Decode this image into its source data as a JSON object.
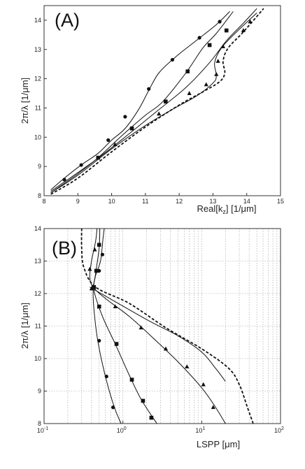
{
  "chart_data": [
    {
      "type": "line",
      "panel_label": "(A)",
      "xlabel_main": "Real[k",
      "xlabel_sub": "z",
      "xlabel_rest": "] [1/μm]",
      "ylabel": "2π/λ [1/μm]",
      "xlim": [
        8,
        15
      ],
      "ylim": [
        8,
        14.5
      ],
      "x_scale": "linear",
      "xticks": [
        8,
        9,
        10,
        11,
        12,
        13,
        14,
        15
      ],
      "yticks": [
        8,
        9,
        10,
        11,
        12,
        13,
        14
      ],
      "grid": false,
      "series": [
        {
          "marker": "circle",
          "style": "solid",
          "points": [
            [
              8.2,
              8.2
            ],
            [
              8.6,
              8.6
            ],
            [
              9.1,
              9.05
            ],
            [
              9.6,
              9.45
            ],
            [
              10.0,
              9.9
            ],
            [
              10.4,
              10.3
            ],
            [
              10.8,
              10.95
            ],
            [
              11.1,
              11.6
            ],
            [
              11.4,
              12.2
            ],
            [
              11.9,
              12.75
            ],
            [
              12.5,
              13.3
            ],
            [
              13.1,
              13.85
            ],
            [
              13.5,
              14.3
            ]
          ],
          "markers": [
            [
              8.6,
              8.55
            ],
            [
              9.1,
              9.05
            ],
            [
              9.9,
              9.9
            ],
            [
              10.4,
              10.7
            ],
            [
              11.1,
              11.65
            ],
            [
              11.8,
              12.65
            ],
            [
              12.6,
              13.4
            ],
            [
              13.2,
              13.95
            ]
          ]
        },
        {
          "marker": "square",
          "style": "solid",
          "points": [
            [
              8.2,
              8.1
            ],
            [
              9.0,
              8.75
            ],
            [
              9.6,
              9.3
            ],
            [
              10.3,
              10.05
            ],
            [
              11.0,
              10.75
            ],
            [
              11.5,
              11.2
            ],
            [
              12.2,
              12.2
            ],
            [
              12.7,
              13.05
            ],
            [
              13.1,
              13.55
            ],
            [
              13.6,
              14.3
            ]
          ],
          "markers": [
            [
              9.6,
              9.3
            ],
            [
              10.6,
              10.3
            ],
            [
              11.6,
              11.22
            ],
            [
              12.25,
              12.25
            ],
            [
              12.9,
              13.15
            ],
            [
              13.4,
              13.65
            ]
          ]
        },
        {
          "marker": "none",
          "style": "solid",
          "points": [
            [
              8.2,
              8.15
            ],
            [
              9.5,
              9.2
            ],
            [
              10.5,
              10.1
            ],
            [
              11.3,
              10.85
            ],
            [
              12.2,
              11.7
            ],
            [
              12.9,
              12.55
            ],
            [
              13.4,
              13.3
            ],
            [
              13.9,
              13.9
            ],
            [
              14.3,
              14.4
            ]
          ],
          "markers": []
        },
        {
          "marker": "triangle",
          "style": "solid",
          "points": [
            [
              8.2,
              8.1
            ],
            [
              9.0,
              8.7
            ],
            [
              10.0,
              9.6
            ],
            [
              11.0,
              10.4
            ],
            [
              11.8,
              10.95
            ],
            [
              12.5,
              11.4
            ],
            [
              13.0,
              11.85
            ],
            [
              13.1,
              12.1
            ],
            [
              13.05,
              12.55
            ],
            [
              13.25,
              13.05
            ],
            [
              13.7,
              13.6
            ],
            [
              14.3,
              14.25
            ]
          ],
          "markers": [
            [
              10.1,
              9.75
            ],
            [
              11.4,
              10.8
            ],
            [
              12.3,
              11.5
            ],
            [
              12.8,
              11.8
            ],
            [
              13.1,
              12.15
            ],
            [
              13.15,
              12.6
            ],
            [
              13.3,
              13.1
            ],
            [
              13.9,
              13.65
            ],
            [
              14.1,
              13.95
            ]
          ]
        },
        {
          "marker": "none",
          "style": "dashed",
          "points": [
            [
              8.2,
              8.05
            ],
            [
              9.0,
              8.6
            ],
            [
              10.0,
              9.5
            ],
            [
              11.0,
              10.35
            ],
            [
              12.0,
              11.1
            ],
            [
              12.7,
              11.55
            ],
            [
              13.2,
              11.9
            ],
            [
              13.35,
              12.2
            ],
            [
              13.3,
              12.6
            ],
            [
              13.45,
              13.05
            ],
            [
              13.9,
              13.6
            ],
            [
              14.5,
              14.4
            ]
          ],
          "markers": []
        }
      ]
    },
    {
      "type": "line",
      "panel_label": "(B)",
      "xlabel": "LSPP [μm]",
      "ylabel": "2π/λ [1/μm]",
      "xlim": [
        0.1,
        100
      ],
      "ylim": [
        8,
        14
      ],
      "x_scale": "log",
      "xtick_bases": [
        "10",
        "10",
        "10",
        "10"
      ],
      "xtick_exps": [
        "-1",
        "0",
        "1",
        "2"
      ],
      "xtick_values": [
        0.1,
        1,
        10,
        100
      ],
      "yticks": [
        8,
        9,
        10,
        11,
        12,
        13,
        14
      ],
      "grid": true,
      "series": [
        {
          "marker": "circle",
          "style": "solid",
          "points": [
            [
              0.95,
              8.0
            ],
            [
              0.78,
              8.5
            ],
            [
              0.6,
              9.45
            ],
            [
              0.48,
              10.55
            ],
            [
              0.43,
              11.5
            ],
            [
              0.42,
              12.1
            ],
            [
              0.45,
              12.55
            ],
            [
              0.52,
              13.0
            ],
            [
              0.56,
              13.7
            ],
            [
              0.58,
              14.0
            ]
          ],
          "markers": [
            [
              0.75,
              8.5
            ],
            [
              0.62,
              9.45
            ],
            [
              0.5,
              10.55
            ],
            [
              0.42,
              12.2
            ],
            [
              0.5,
              12.7
            ],
            [
              0.55,
              13.2
            ]
          ]
        },
        {
          "marker": "square",
          "style": "solid",
          "points": [
            [
              2.7,
              8.0
            ],
            [
              1.7,
              8.75
            ],
            [
              1.2,
              9.5
            ],
            [
              0.8,
              10.45
            ],
            [
              0.55,
              11.3
            ],
            [
              0.43,
              12.1
            ],
            [
              0.45,
              12.6
            ],
            [
              0.5,
              13.4
            ],
            [
              0.51,
              14.0
            ]
          ],
          "markers": [
            [
              2.3,
              8.18
            ],
            [
              1.8,
              8.7
            ],
            [
              1.3,
              9.35
            ],
            [
              0.83,
              10.45
            ],
            [
              0.5,
              11.6
            ],
            [
              0.43,
              12.2
            ],
            [
              0.46,
              12.7
            ],
            [
              0.5,
              13.5
            ]
          ]
        },
        {
          "marker": "triangle",
          "style": "solid",
          "points": [
            [
              20,
              8.0
            ],
            [
              15,
              8.5
            ],
            [
              10,
              9.1
            ],
            [
              5,
              9.9
            ],
            [
              2.5,
              10.6
            ],
            [
              1.2,
              11.3
            ],
            [
              0.6,
              11.85
            ],
            [
              0.42,
              12.2
            ],
            [
              0.38,
              12.5
            ],
            [
              0.4,
              13.0
            ],
            [
              0.45,
              13.6
            ],
            [
              0.47,
              14.0
            ]
          ],
          "markers": [
            [
              14,
              8.5
            ],
            [
              10.5,
              9.2
            ],
            [
              6.5,
              9.75
            ],
            [
              3.5,
              10.3
            ],
            [
              1.7,
              10.95
            ],
            [
              0.8,
              11.6
            ],
            [
              0.4,
              12.15
            ],
            [
              0.38,
              12.75
            ],
            [
              0.44,
              13.35
            ]
          ]
        },
        {
          "marker": "none",
          "style": "solid",
          "points": [
            [
              0.38,
              12.2
            ],
            [
              2.0,
              11.2
            ],
            [
              5.0,
              10.7
            ],
            [
              10.0,
              10.2
            ],
            [
              15.0,
              9.7
            ],
            [
              20.0,
              9.3
            ]
          ],
          "markers": []
        },
        {
          "marker": "none",
          "style": "dashed",
          "points": [
            [
              45,
              8.0
            ],
            [
              38,
              8.5
            ],
            [
              30,
              9.2
            ],
            [
              22,
              9.7
            ],
            [
              10,
              10.3
            ],
            [
              3.5,
              10.95
            ],
            [
              1.2,
              11.7
            ],
            [
              0.45,
              12.2
            ],
            [
              0.32,
              12.8
            ],
            [
              0.3,
              13.4
            ],
            [
              0.3,
              14.0
            ]
          ],
          "markers": []
        }
      ]
    }
  ]
}
